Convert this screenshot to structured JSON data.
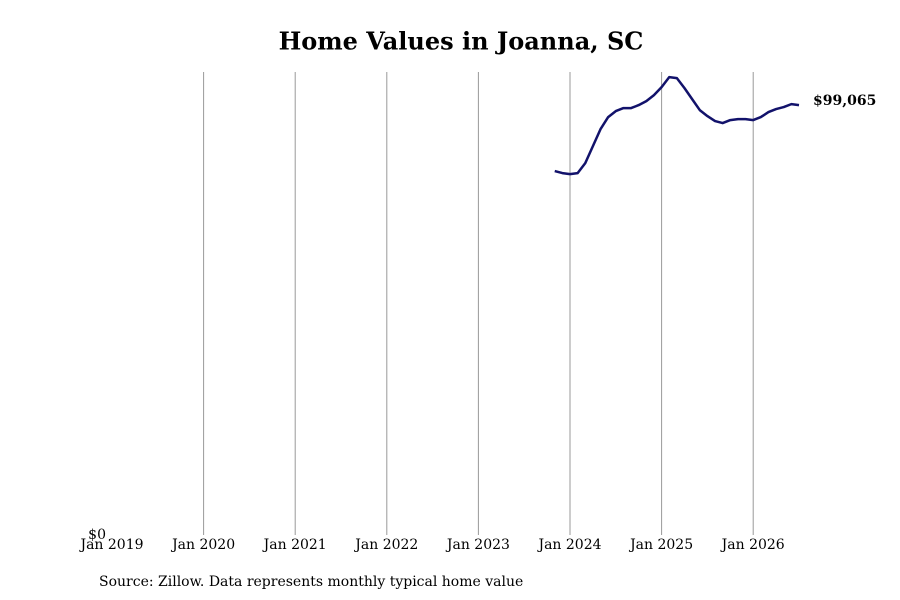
{
  "chart_data": {
    "type": "line",
    "title": "Home Values in Joanna, SC",
    "source": "Source: Zillow. Data represents monthly typical home value",
    "x": [
      "2023-11",
      "2023-12",
      "2024-01",
      "2024-02",
      "2024-03",
      "2024-04",
      "2024-05",
      "2024-06",
      "2024-07",
      "2024-08",
      "2024-09",
      "2024-10",
      "2024-11",
      "2024-12",
      "2025-01",
      "2025-02",
      "2025-03",
      "2025-04",
      "2025-05",
      "2025-06",
      "2025-07",
      "2025-08",
      "2025-09",
      "2025-10",
      "2025-11",
      "2025-12",
      "2026-01",
      "2026-02",
      "2026-03",
      "2026-04",
      "2026-05",
      "2026-06",
      "2026-07"
    ],
    "series": [
      {
        "name": "Joanna, SC",
        "color": "#12126b",
        "values": [
          83866,
          83405,
          83174,
          83405,
          85709,
          89626,
          93542,
          96307,
          97690,
          98381,
          98381,
          99072,
          99994,
          101376,
          103219,
          105523,
          105293,
          102989,
          100454,
          97920,
          96538,
          95386,
          94925,
          95616,
          95846,
          95846,
          95616,
          96307,
          97459,
          98150,
          98611,
          99302,
          99065
        ],
        "value_labels": [
          null,
          null,
          null,
          null,
          null,
          null,
          null,
          null,
          null,
          null,
          null,
          null,
          null,
          null,
          null,
          null,
          null,
          null,
          null,
          null,
          null,
          null,
          null,
          null,
          null,
          null,
          null,
          null,
          null,
          null,
          null,
          null,
          "$99,065"
        ]
      }
    ],
    "xlim": [
      "2019-01",
      "2026-07"
    ],
    "xticks": [
      {
        "value": "2019-01",
        "label": "Jan 2019"
      },
      {
        "value": "2020-01",
        "label": "Jan 2020"
      },
      {
        "value": "2021-01",
        "label": "Jan 2021"
      },
      {
        "value": "2022-01",
        "label": "Jan 2022"
      },
      {
        "value": "2023-01",
        "label": "Jan 2023"
      },
      {
        "value": "2024-01",
        "label": "Jan 2024"
      },
      {
        "value": "2025-01",
        "label": "Jan 2025"
      },
      {
        "value": "2026-01",
        "label": "Jan 2026"
      }
    ],
    "ylim": [
      0,
      106700
    ],
    "yticks": [
      {
        "value": 0,
        "label": "$0"
      }
    ],
    "grid": "x"
  }
}
